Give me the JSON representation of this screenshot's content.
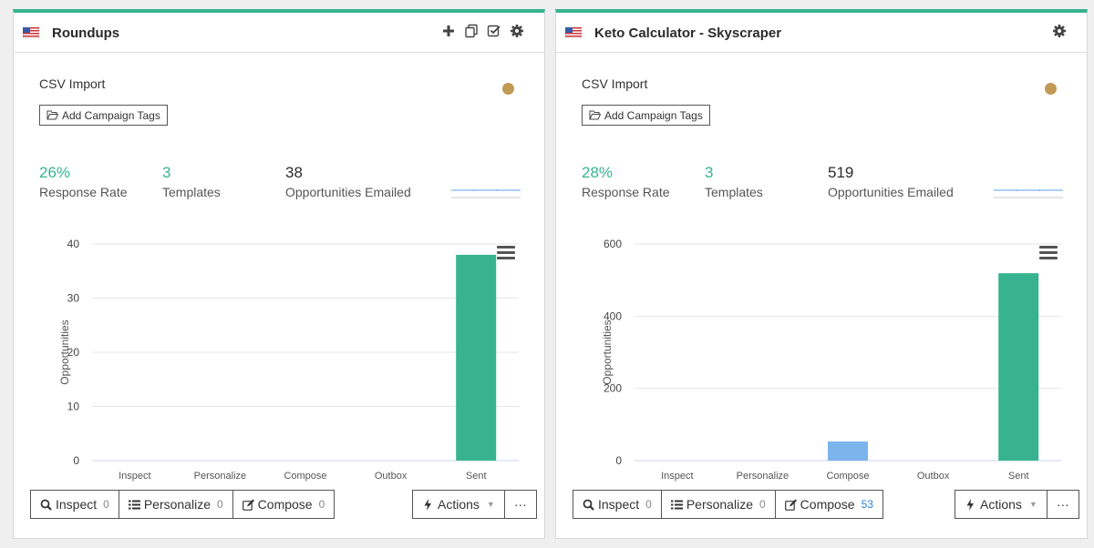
{
  "cards": [
    {
      "title": "Roundups",
      "source": "CSV Import",
      "tags_button": "Add Campaign Tags",
      "status_color": "#c19a55",
      "header_icons": [
        "plus-icon",
        "copy-icon",
        "check-square-icon",
        "gear-icon"
      ],
      "stats": {
        "response_rate": {
          "value": "26%",
          "label": "Response Rate"
        },
        "templates": {
          "value": "3",
          "label": "Templates"
        },
        "opportunities": {
          "value": "38",
          "label": "Opportunities Emailed"
        }
      },
      "chart_data": {
        "type": "bar",
        "ylabel": "Opportunities",
        "categories": [
          "Inspect",
          "Personalize",
          "Compose",
          "Outbox",
          "Sent"
        ],
        "values": [
          0,
          0,
          0,
          0,
          38
        ],
        "bar_colors": [
          "#7cb5ec",
          "#7cb5ec",
          "#7cb5ec",
          "#7cb5ec",
          "#37b38f"
        ],
        "yticks": [
          0,
          10,
          20,
          30,
          40
        ],
        "ylim": [
          0,
          40
        ],
        "grid": true
      },
      "buttons": {
        "inspect": {
          "label": "Inspect",
          "count": "0"
        },
        "personalize": {
          "label": "Personalize",
          "count": "0"
        },
        "compose": {
          "label": "Compose",
          "count": "0"
        },
        "actions": "Actions",
        "more": "···"
      }
    },
    {
      "title": "Keto Calculator - Skyscraper",
      "source": "CSV Import",
      "tags_button": "Add Campaign Tags",
      "status_color": "#c19a55",
      "header_icons": [
        "gear-icon"
      ],
      "stats": {
        "response_rate": {
          "value": "28%",
          "label": "Response Rate"
        },
        "templates": {
          "value": "3",
          "label": "Templates"
        },
        "opportunities": {
          "value": "519",
          "label": "Opportunities Emailed"
        }
      },
      "chart_data": {
        "type": "bar",
        "ylabel": "Opportunities",
        "categories": [
          "Inspect",
          "Personalize",
          "Compose",
          "Outbox",
          "Sent"
        ],
        "values": [
          0,
          0,
          53,
          0,
          519
        ],
        "bar_colors": [
          "#7cb5ec",
          "#7cb5ec",
          "#7cb5ec",
          "#7cb5ec",
          "#37b38f"
        ],
        "yticks": [
          0,
          200,
          400,
          600
        ],
        "ylim": [
          0,
          600
        ],
        "grid": true
      },
      "buttons": {
        "inspect": {
          "label": "Inspect",
          "count": "0"
        },
        "personalize": {
          "label": "Personalize",
          "count": "0"
        },
        "compose": {
          "label": "Compose",
          "count": "53"
        },
        "actions": "Actions",
        "more": "···"
      }
    }
  ]
}
